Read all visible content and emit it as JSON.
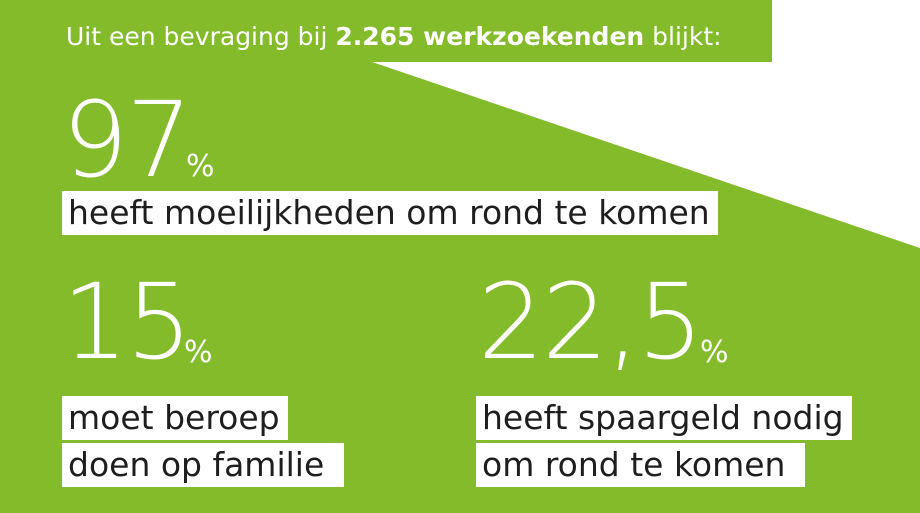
{
  "header": {
    "text_before": "Uit een bevraging bij ",
    "highlight": "2.265 werkzoekenden",
    "text_after": " blijkt:"
  },
  "stats": [
    {
      "value": "97",
      "unit": "%",
      "lines": [
        "heeft moeilijkheden om rond te komen"
      ]
    },
    {
      "value": "15",
      "unit": "%",
      "lines": [
        "moet beroep",
        "doen op familie"
      ]
    },
    {
      "value": "22,5",
      "unit": "%",
      "lines": [
        "heeft spaargeld nodig",
        "om rond te komen"
      ]
    }
  ]
}
